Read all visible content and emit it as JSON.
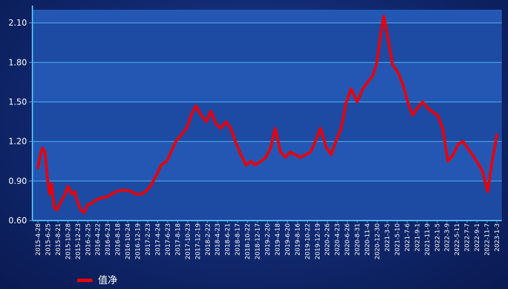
{
  "chart_data": {
    "type": "line",
    "title": "",
    "xlabel": "",
    "ylabel": "",
    "ylim": [
      0.6,
      2.2
    ],
    "y_ticks": [
      "0.60",
      "0.90",
      "1.20",
      "1.50",
      "1.80",
      "2.10"
    ],
    "x_tick_labels": [
      "2015-4-28",
      "2015-6-25",
      "2015-8-21",
      "2015-10-28",
      "2015-12-23",
      "2016-2-25",
      "2016-4-22",
      "2016-6-23",
      "2016-8-18",
      "2016-10-24",
      "2016-12-19",
      "2017-2-23",
      "2017-4-24",
      "2017-6-23",
      "2017-8-18",
      "2017-10-23",
      "2017-12-19",
      "2018-2-22",
      "2018-4-23",
      "2018-6-21",
      "2018-8-17",
      "2018-10-22",
      "2018-12-17",
      "2019-2-20",
      "2019-4-18",
      "2019-6-20",
      "2019-8-16",
      "2019-10-22",
      "2019-12-19",
      "2020-2-26",
      "2020-4-23",
      "2020-6-26",
      "2020-8-31",
      "2020-11-4",
      "2020-12-30",
      "2021-3-5",
      "2021-5-10",
      "2021-7-6",
      "2021-9-1",
      "2021-11-9",
      "2022-1-5",
      "2022-3-9",
      "2022-5-11",
      "2022-7-7",
      "2022-9-1",
      "2022-11-7",
      "2023-1-3"
    ],
    "grid": true,
    "legend_position": "bottom-left",
    "line_color": "#e8000b",
    "series": [
      {
        "name": "值净",
        "x": [
          "2015-4-28",
          "2015-5-10",
          "2015-5-25",
          "2015-6-10",
          "2015-6-25",
          "2015-7-8",
          "2015-7-20",
          "2015-8-5",
          "2015-8-21",
          "2015-9-15",
          "2015-10-10",
          "2015-10-28",
          "2015-11-20",
          "2015-12-10",
          "2015-12-23",
          "2016-1-15",
          "2016-2-5",
          "2016-2-25",
          "2016-3-20",
          "2016-4-22",
          "2016-5-20",
          "2016-6-23",
          "2016-7-20",
          "2016-8-18",
          "2016-9-20",
          "2016-10-24",
          "2016-11-20",
          "2016-12-19",
          "2017-1-20",
          "2017-2-23",
          "2017-3-20",
          "2017-4-24",
          "2017-5-20",
          "2017-6-23",
          "2017-7-20",
          "2017-8-18",
          "2017-9-20",
          "2017-10-23",
          "2017-11-20",
          "2017-12-19",
          "2018-1-20",
          "2018-2-22",
          "2018-3-20",
          "2018-4-23",
          "2018-5-20",
          "2018-6-21",
          "2018-7-20",
          "2018-8-17",
          "2018-9-20",
          "2018-10-22",
          "2018-11-20",
          "2018-12-17",
          "2019-1-20",
          "2019-2-20",
          "2019-3-20",
          "2019-4-18",
          "2019-5-20",
          "2019-6-20",
          "2019-7-20",
          "2019-8-16",
          "2019-9-20",
          "2019-10-22",
          "2019-11-20",
          "2019-12-19",
          "2020-1-20",
          "2020-2-26",
          "2020-3-25",
          "2020-4-23",
          "2020-5-25",
          "2020-6-26",
          "2020-7-25",
          "2020-8-31",
          "2020-10-5",
          "2020-11-4",
          "2020-12-5",
          "2020-12-30",
          "2021-1-20",
          "2021-2-10",
          "2021-3-5",
          "2021-4-5",
          "2021-5-10",
          "2021-6-10",
          "2021-7-6",
          "2021-8-5",
          "2021-9-1",
          "2021-10-5",
          "2021-11-9",
          "2021-12-10",
          "2022-1-5",
          "2022-2-5",
          "2022-3-9",
          "2022-4-10",
          "2022-5-11",
          "2022-6-10",
          "2022-7-7",
          "2022-8-5",
          "2022-9-1",
          "2022-10-5",
          "2022-11-7",
          "2022-12-5",
          "2023-1-3"
        ],
        "values": [
          1.0,
          1.08,
          1.15,
          1.12,
          0.92,
          0.8,
          0.88,
          0.7,
          0.68,
          0.74,
          0.8,
          0.86,
          0.8,
          0.82,
          0.75,
          0.68,
          0.66,
          0.72,
          0.73,
          0.76,
          0.77,
          0.78,
          0.8,
          0.82,
          0.83,
          0.83,
          0.82,
          0.8,
          0.8,
          0.83,
          0.87,
          0.95,
          1.02,
          1.05,
          1.12,
          1.2,
          1.25,
          1.3,
          1.4,
          1.47,
          1.4,
          1.35,
          1.43,
          1.33,
          1.3,
          1.35,
          1.3,
          1.2,
          1.1,
          1.02,
          1.05,
          1.02,
          1.05,
          1.08,
          1.15,
          1.3,
          1.12,
          1.08,
          1.12,
          1.1,
          1.08,
          1.1,
          1.12,
          1.2,
          1.3,
          1.15,
          1.1,
          1.2,
          1.3,
          1.5,
          1.6,
          1.5,
          1.6,
          1.65,
          1.7,
          1.8,
          2.0,
          2.15,
          2.0,
          1.78,
          1.72,
          1.62,
          1.5,
          1.4,
          1.45,
          1.5,
          1.45,
          1.42,
          1.4,
          1.3,
          1.05,
          1.1,
          1.18,
          1.2,
          1.15,
          1.1,
          1.05,
          0.98,
          0.82,
          1.05,
          1.25
        ]
      }
    ]
  }
}
